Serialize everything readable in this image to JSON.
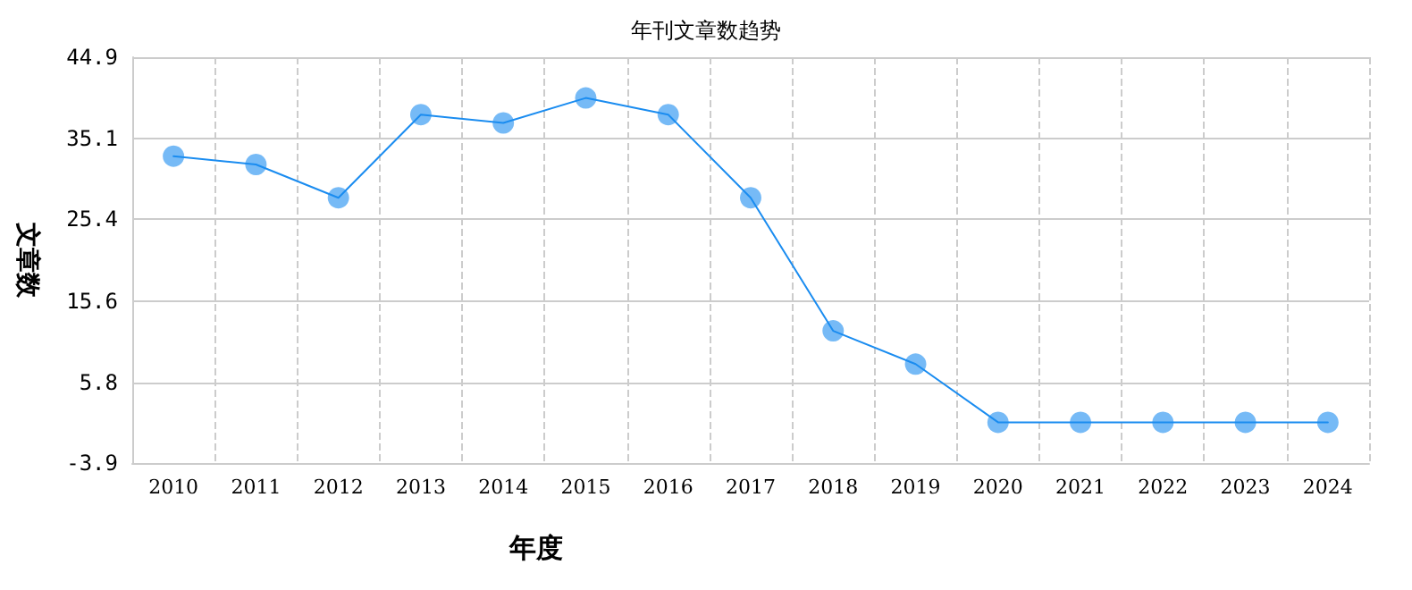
{
  "chart_data": {
    "type": "line",
    "title": "年刊文章数趋势",
    "xlabel": "年度",
    "ylabel": "文章数",
    "categories": [
      "2010",
      "2011",
      "2012",
      "2013",
      "2014",
      "2015",
      "2016",
      "2017",
      "2018",
      "2019",
      "2020",
      "2021",
      "2022",
      "2023",
      "2024"
    ],
    "series": [
      {
        "color": "#1a8cf0",
        "values": [
          33,
          32,
          28,
          38,
          37,
          40,
          38,
          28,
          12,
          8,
          1,
          1,
          1,
          1,
          1
        ]
      }
    ],
    "ylim": [
      -3.9,
      44.9
    ],
    "yticks": [
      -3.9,
      5.8,
      15.6,
      25.4,
      35.1,
      44.9
    ],
    "grid": true,
    "marker": "circle",
    "line_style": "solid"
  }
}
